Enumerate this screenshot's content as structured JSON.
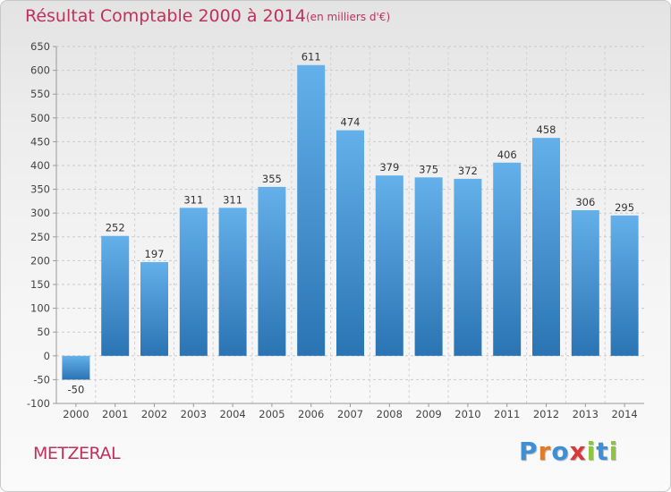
{
  "chart_data": {
    "type": "bar",
    "title": "Résultat Comptable 2000 à 2014",
    "subtitle": "(en milliers d'€)",
    "categories": [
      "2000",
      "2001",
      "2002",
      "2003",
      "2004",
      "2005",
      "2006",
      "2007",
      "2008",
      "2009",
      "2010",
      "2011",
      "2012",
      "2013",
      "2014"
    ],
    "values": [
      -50,
      252,
      197,
      311,
      311,
      355,
      611,
      474,
      379,
      375,
      372,
      406,
      458,
      306,
      295
    ],
    "ylim": [
      -100,
      650
    ],
    "yticks": [
      -100,
      -50,
      0,
      50,
      100,
      150,
      200,
      250,
      300,
      350,
      400,
      450,
      500,
      550,
      600,
      650
    ],
    "grid": true,
    "xlabel": "",
    "ylabel": "",
    "bar_color_top": "#64b0ea",
    "bar_color_bottom": "#2a74b3"
  },
  "footer": {
    "town": "METZERAL",
    "logo_letters": [
      "P",
      "r",
      "o",
      "x",
      "i",
      "t",
      "i"
    ],
    "logo_colors": [
      "#3d8fd6",
      "#e07b28",
      "#3d8fd6",
      "#d83a3a",
      "#8cc63f",
      "#3d8fd6",
      "#8cc63f"
    ]
  }
}
